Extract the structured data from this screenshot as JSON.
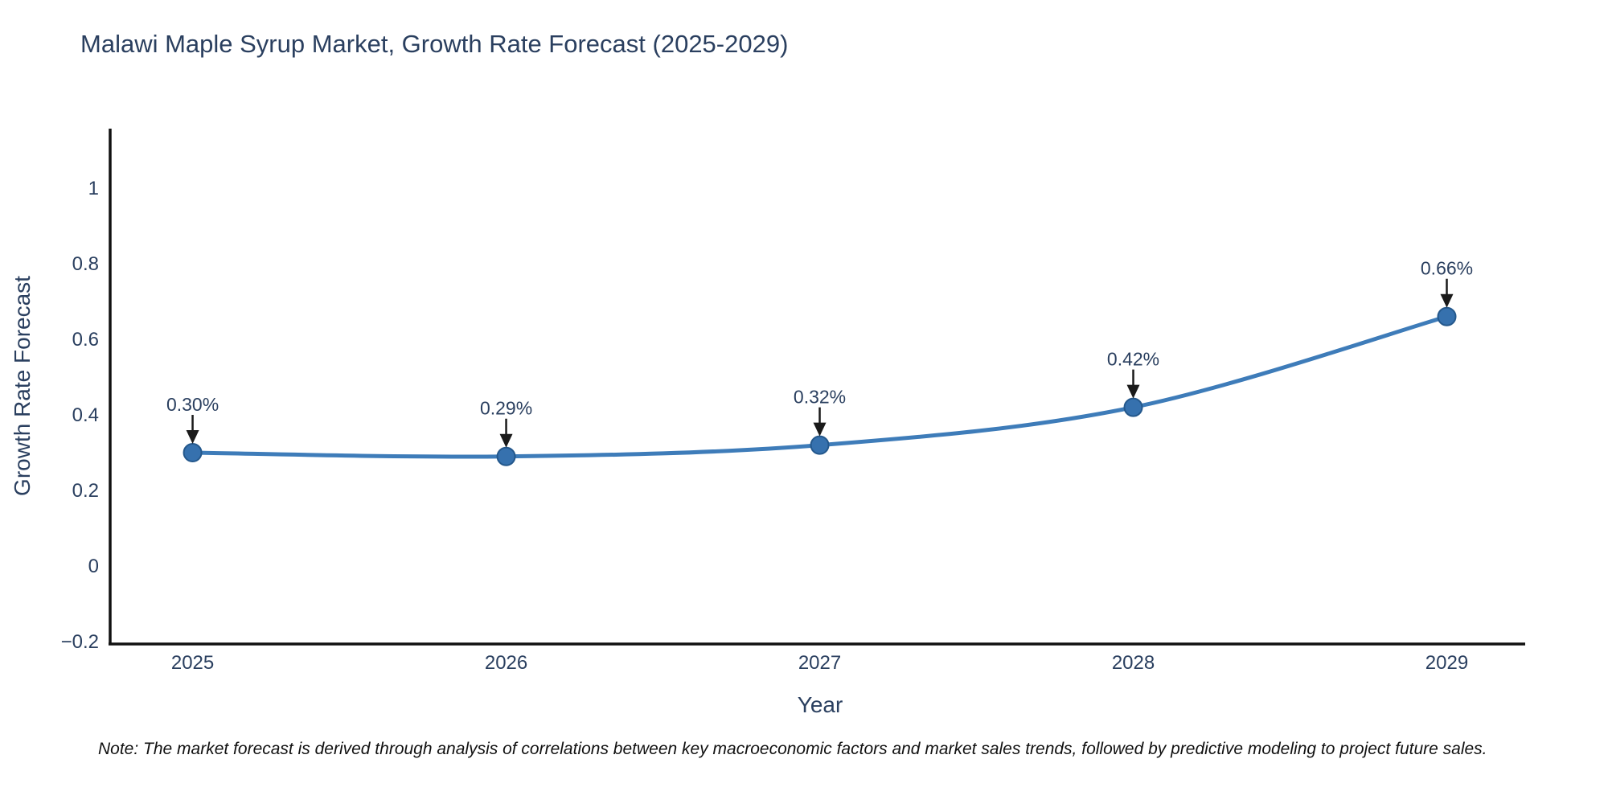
{
  "title": "Malawi Maple Syrup Market, Growth Rate Forecast (2025-2029)",
  "note": "Note: The market forecast is derived through analysis of correlations between key macroeconomic factors and market sales trends, followed by predictive modeling to project future sales.",
  "chart_data": {
    "type": "line",
    "title": "Malawi Maple Syrup Market, Growth Rate Forecast (2025-2029)",
    "xlabel": "Year",
    "ylabel": "Growth Rate Forecast",
    "x": [
      2025,
      2026,
      2027,
      2028,
      2029
    ],
    "series": [
      {
        "name": "Growth Rate Forecast",
        "values": [
          0.3,
          0.29,
          0.32,
          0.42,
          0.66
        ]
      }
    ],
    "point_labels": [
      "0.30%",
      "0.29%",
      "0.32%",
      "0.42%",
      "0.66%"
    ],
    "xticks": [
      2025,
      2026,
      2027,
      2028,
      2029
    ],
    "xtick_labels": [
      "2025",
      "2026",
      "2027",
      "2028",
      "2029"
    ],
    "yticks": [
      -0.2,
      0,
      0.2,
      0.4,
      0.6,
      0.8,
      1
    ],
    "ytick_labels": [
      "−0.2",
      "0",
      "0.2",
      "0.4",
      "0.6",
      "0.8",
      "1"
    ],
    "xlim": [
      2024.737,
      2029.25
    ],
    "ylim": [
      -0.206,
      1.157
    ],
    "grid": false,
    "legend": "none",
    "colors": {
      "line": "#3e7cb9",
      "marker_fill": "#3671ae",
      "marker_edge": "#24588c",
      "axis": "#111111",
      "text": "#2a3f5f",
      "annotation_text": "#2a3f5f",
      "arrow": "#1a1a1a",
      "background": "#ffffff"
    }
  }
}
